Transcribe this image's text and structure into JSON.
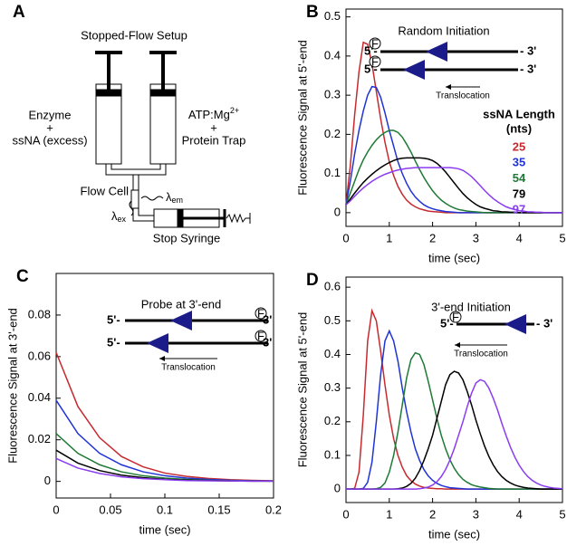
{
  "diagram": {
    "panel": "A",
    "title": "Stopped-Flow Setup",
    "left_syringe": [
      "Enzyme",
      "+",
      "ssNA (excess)"
    ],
    "right_syringe": [
      {
        "base": "ATP:Mg",
        "sup": "2+"
      },
      "+",
      "Protein Trap"
    ],
    "flow_cell": "Flow Cell",
    "emission": {
      "base": "λ",
      "sub": "em"
    },
    "excitation": {
      "base": "λ",
      "sub": "ex"
    },
    "stop_syringe": "Stop Syringe"
  },
  "chart_data": [
    {
      "type": "line",
      "panel": "B",
      "xlabel": "time (sec)",
      "ylabel": "Fluorescence Signal at 5'-end",
      "xlim": [
        0,
        5
      ],
      "ylim": [
        -0.035,
        0.52
      ],
      "xticks": [
        0,
        1,
        2,
        3,
        4,
        5
      ],
      "yticks": [
        0,
        0.1,
        0.2,
        0.3,
        0.4,
        0.5
      ],
      "inset": {
        "title": "Random Initiation",
        "strands": [
          {
            "left": "5'-",
            "right": "- 3'",
            "fluor": "F"
          },
          {
            "left": "5'-",
            "right": "- 3'",
            "fluor": "F"
          }
        ],
        "arrow_label": "Translocation"
      },
      "legend_title": [
        "ssNA Length",
        "(nts)"
      ],
      "x": [
        0,
        0.1,
        0.2,
        0.3,
        0.4,
        0.5,
        0.6,
        0.7,
        0.8,
        0.9,
        1,
        1.1,
        1.2,
        1.3,
        1.4,
        1.5,
        1.6,
        1.7,
        1.8,
        1.9,
        2,
        2.1,
        2.2,
        2.3,
        2.4,
        2.5,
        2.6,
        2.7,
        2.8,
        2.9,
        3,
        3.1,
        3.2,
        3.3,
        3.4,
        3.5,
        3.6,
        3.7,
        3.8,
        3.9,
        4,
        4.1,
        4.2,
        4.3,
        4.4,
        4.5,
        4.6,
        4.7,
        4.8,
        4.9,
        5
      ],
      "series": [
        {
          "name": "25",
          "color": "#c62a2f",
          "values": [
            0.02,
            0.12,
            0.25,
            0.36,
            0.435,
            0.43,
            0.38,
            0.31,
            0.24,
            0.18,
            0.13,
            0.095,
            0.067,
            0.047,
            0.032,
            0.022,
            0.015,
            0.01,
            0.007,
            0.004,
            0.003,
            0.002,
            0.001,
            0,
            0,
            0,
            0,
            0,
            0,
            0,
            0,
            0,
            0,
            0,
            0,
            0,
            0,
            0,
            0,
            0,
            0,
            0,
            0,
            0,
            0,
            0,
            0,
            0,
            0,
            0,
            0
          ]
        },
        {
          "name": "35",
          "color": "#1f33d6",
          "values": [
            0.02,
            0.08,
            0.15,
            0.21,
            0.26,
            0.3,
            0.322,
            0.32,
            0.295,
            0.255,
            0.21,
            0.17,
            0.13,
            0.1,
            0.075,
            0.055,
            0.04,
            0.029,
            0.02,
            0.014,
            0.01,
            0.007,
            0.005,
            0.003,
            0.002,
            0.001,
            0,
            0,
            0,
            0,
            0,
            0,
            0,
            0,
            0,
            0,
            0,
            0,
            0,
            0,
            0,
            0,
            0,
            0,
            0,
            0,
            0,
            0,
            0,
            0,
            0
          ]
        },
        {
          "name": "54",
          "color": "#1e7a34",
          "values": [
            0.02,
            0.05,
            0.08,
            0.11,
            0.135,
            0.155,
            0.172,
            0.186,
            0.197,
            0.205,
            0.21,
            0.21,
            0.205,
            0.193,
            0.175,
            0.155,
            0.132,
            0.11,
            0.09,
            0.072,
            0.056,
            0.043,
            0.032,
            0.024,
            0.017,
            0.012,
            0.008,
            0.006,
            0.004,
            0.003,
            0.002,
            0.001,
            0,
            0,
            0,
            0,
            0,
            0,
            0,
            0,
            0,
            0,
            0,
            0,
            0,
            0,
            0,
            0,
            0,
            0,
            0
          ]
        },
        {
          "name": "79",
          "color": "#000000",
          "values": [
            0.02,
            0.035,
            0.05,
            0.064,
            0.077,
            0.088,
            0.098,
            0.107,
            0.115,
            0.122,
            0.128,
            0.133,
            0.137,
            0.139,
            0.14,
            0.14,
            0.14,
            0.14,
            0.139,
            0.137,
            0.133,
            0.126,
            0.116,
            0.104,
            0.09,
            0.076,
            0.062,
            0.049,
            0.038,
            0.029,
            0.021,
            0.015,
            0.011,
            0.008,
            0.005,
            0.004,
            0.002,
            0.002,
            0.001,
            0.001,
            0,
            0,
            0,
            0,
            0,
            0,
            0,
            0,
            0,
            0,
            0
          ]
        },
        {
          "name": "97",
          "color": "#8b3cf0",
          "values": [
            0.02,
            0.03,
            0.042,
            0.053,
            0.063,
            0.072,
            0.08,
            0.087,
            0.093,
            0.098,
            0.102,
            0.106,
            0.109,
            0.111,
            0.113,
            0.114,
            0.115,
            0.115,
            0.115,
            0.115,
            0.115,
            0.115,
            0.115,
            0.115,
            0.115,
            0.114,
            0.112,
            0.108,
            0.101,
            0.092,
            0.081,
            0.069,
            0.057,
            0.046,
            0.036,
            0.028,
            0.021,
            0.015,
            0.011,
            0.008,
            0.005,
            0.004,
            0.002,
            0.002,
            0.001,
            0.001,
            0,
            0,
            0,
            0,
            0
          ]
        }
      ]
    },
    {
      "type": "line",
      "panel": "C",
      "xlabel": "time (sec)",
      "ylabel": "Fluorescence Signal at 3'-end",
      "xlim": [
        0,
        0.2
      ],
      "ylim": [
        -0.008,
        0.1
      ],
      "xticks": [
        0,
        0.05,
        0.1,
        0.15,
        0.2
      ],
      "yticks": [
        0,
        0.02,
        0.04,
        0.06,
        0.08
      ],
      "inset": {
        "title": "Probe at 3'-end",
        "strands": [
          {
            "left": "5'-",
            "right": "3'",
            "fluor": "F"
          },
          {
            "left": "5'-",
            "right": "3'",
            "fluor": "F"
          }
        ],
        "arrow_label": "Translocation"
      },
      "x": [
        0,
        0.02,
        0.04,
        0.06,
        0.08,
        0.1,
        0.12,
        0.14,
        0.16,
        0.18,
        0.2
      ],
      "series": [
        {
          "color": "#c62a2f",
          "values": [
            0.062,
            0.036,
            0.021,
            0.012,
            0.007,
            0.004,
            0.0024,
            0.0014,
            0.0008,
            0.0005,
            0.0003
          ]
        },
        {
          "color": "#1f33d6",
          "values": [
            0.039,
            0.023,
            0.0135,
            0.008,
            0.0046,
            0.0027,
            0.0016,
            0.0009,
            0.0005,
            0.0003,
            0.0002
          ]
        },
        {
          "color": "#1e7a34",
          "values": [
            0.023,
            0.0135,
            0.008,
            0.0046,
            0.0027,
            0.0016,
            0.0009,
            0.0005,
            0.0003,
            0.0002,
            0.0001
          ]
        },
        {
          "color": "#000000",
          "values": [
            0.015,
            0.0088,
            0.0052,
            0.003,
            0.0018,
            0.001,
            0.0006,
            0.0004,
            0.0002,
            0.0001,
            0.0001
          ]
        },
        {
          "color": "#8b3cf0",
          "values": [
            0.011,
            0.0064,
            0.0038,
            0.0022,
            0.0013,
            0.0008,
            0.0004,
            0.0003,
            0.0002,
            0.0001,
            0.0001
          ]
        }
      ]
    },
    {
      "type": "line",
      "panel": "D",
      "xlabel": "time (sec)",
      "ylabel": "Fluorescence Signal at 5'-end",
      "xlim": [
        0,
        5
      ],
      "ylim": [
        -0.04,
        0.63
      ],
      "xticks": [
        0,
        1,
        2,
        3,
        4,
        5
      ],
      "yticks": [
        0,
        0.1,
        0.2,
        0.3,
        0.4,
        0.5,
        0.6
      ],
      "inset": {
        "title": "3'-end Initiation",
        "strands": [
          {
            "left": "5'-",
            "right": "- 3'",
            "fluor": "F"
          }
        ],
        "arrow_label": "Translocation"
      },
      "x": [
        0,
        0.1,
        0.2,
        0.3,
        0.4,
        0.5,
        0.6,
        0.7,
        0.8,
        0.9,
        1,
        1.1,
        1.2,
        1.3,
        1.4,
        1.5,
        1.6,
        1.7,
        1.8,
        1.9,
        2,
        2.1,
        2.2,
        2.3,
        2.4,
        2.5,
        2.6,
        2.7,
        2.8,
        2.9,
        3,
        3.1,
        3.2,
        3.3,
        3.4,
        3.5,
        3.6,
        3.7,
        3.8,
        3.9,
        4,
        4.1,
        4.2,
        4.3,
        4.4,
        4.5,
        4.6,
        4.7,
        4.8,
        4.9,
        5
      ],
      "series": [
        {
          "color": "#c62a2f",
          "values": [
            0,
            0,
            0.002,
            0.05,
            0.22,
            0.44,
            0.53,
            0.5,
            0.41,
            0.31,
            0.22,
            0.15,
            0.1,
            0.065,
            0.04,
            0.025,
            0.015,
            0.009,
            0.005,
            0.003,
            0.002,
            0.001,
            0.001,
            0,
            0,
            0,
            0,
            0,
            0,
            0,
            0,
            0,
            0,
            0,
            0,
            0,
            0,
            0,
            0,
            0,
            0,
            0,
            0,
            0,
            0,
            0,
            0,
            0,
            0,
            0,
            0
          ]
        },
        {
          "color": "#1f33d6",
          "values": [
            0,
            0,
            0,
            0,
            0.002,
            0.02,
            0.08,
            0.2,
            0.34,
            0.44,
            0.47,
            0.44,
            0.38,
            0.3,
            0.23,
            0.17,
            0.12,
            0.085,
            0.058,
            0.039,
            0.026,
            0.017,
            0.011,
            0.007,
            0.004,
            0.003,
            0.002,
            0.001,
            0,
            0,
            0,
            0,
            0,
            0,
            0,
            0,
            0,
            0,
            0,
            0,
            0,
            0,
            0,
            0,
            0,
            0,
            0,
            0,
            0,
            0,
            0
          ]
        },
        {
          "color": "#1e7a34",
          "values": [
            0,
            0,
            0,
            0,
            0,
            0,
            0,
            0.001,
            0.005,
            0.018,
            0.05,
            0.1,
            0.17,
            0.25,
            0.33,
            0.385,
            0.405,
            0.4,
            0.37,
            0.32,
            0.265,
            0.21,
            0.16,
            0.12,
            0.087,
            0.062,
            0.043,
            0.029,
            0.02,
            0.013,
            0.009,
            0.006,
            0.004,
            0.002,
            0.001,
            0,
            0,
            0,
            0,
            0,
            0,
            0,
            0,
            0,
            0,
            0,
            0,
            0,
            0,
            0,
            0
          ]
        },
        {
          "color": "#000000",
          "values": [
            0,
            0,
            0,
            0,
            0,
            0,
            0,
            0,
            0,
            0,
            0,
            0,
            0.001,
            0.003,
            0.008,
            0.017,
            0.032,
            0.055,
            0.085,
            0.12,
            0.16,
            0.21,
            0.26,
            0.31,
            0.34,
            0.35,
            0.345,
            0.325,
            0.29,
            0.25,
            0.205,
            0.165,
            0.128,
            0.097,
            0.072,
            0.052,
            0.037,
            0.026,
            0.018,
            0.012,
            0.008,
            0.005,
            0.003,
            0.002,
            0.001,
            0,
            0,
            0,
            0,
            0,
            0
          ]
        },
        {
          "color": "#8b3cf0",
          "values": [
            0,
            0,
            0,
            0,
            0,
            0,
            0,
            0,
            0,
            0,
            0,
            0,
            0,
            0,
            0,
            0,
            0,
            0.001,
            0.003,
            0.006,
            0.012,
            0.022,
            0.037,
            0.058,
            0.086,
            0.12,
            0.16,
            0.2,
            0.245,
            0.285,
            0.315,
            0.325,
            0.32,
            0.3,
            0.27,
            0.235,
            0.195,
            0.158,
            0.124,
            0.095,
            0.071,
            0.052,
            0.037,
            0.026,
            0.018,
            0.012,
            0.008,
            0.005,
            0.003,
            0.002,
            0.001
          ]
        }
      ]
    }
  ]
}
